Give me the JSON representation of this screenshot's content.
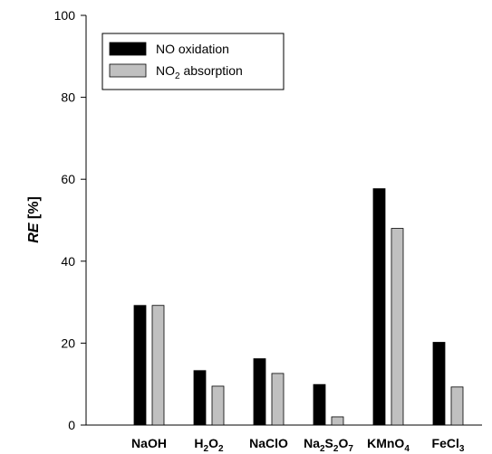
{
  "chart_data": {
    "type": "bar",
    "ylabel_italic": "RE",
    "ylabel_rest": " [%]",
    "ylim": [
      0,
      100
    ],
    "yticks": [
      0,
      20,
      40,
      60,
      80,
      100
    ],
    "categories": [
      {
        "base": "NaOH",
        "parts": [
          {
            "t": "NaOH",
            "sub": false
          }
        ]
      },
      {
        "base": "H2O2",
        "parts": [
          {
            "t": "H",
            "sub": false
          },
          {
            "t": "2",
            "sub": true
          },
          {
            "t": "O",
            "sub": false
          },
          {
            "t": "2",
            "sub": true
          }
        ]
      },
      {
        "base": "NaClO",
        "parts": [
          {
            "t": "NaClO",
            "sub": false
          }
        ]
      },
      {
        "base": "Na2S2O7",
        "parts": [
          {
            "t": "Na",
            "sub": false
          },
          {
            "t": "2",
            "sub": true
          },
          {
            "t": "S",
            "sub": false
          },
          {
            "t": "2",
            "sub": true
          },
          {
            "t": "O",
            "sub": false
          },
          {
            "t": "7",
            "sub": true
          }
        ]
      },
      {
        "base": "KMnO4",
        "parts": [
          {
            "t": "KMnO",
            "sub": false
          },
          {
            "t": "4",
            "sub": true
          }
        ]
      },
      {
        "base": "FeCl3",
        "parts": [
          {
            "t": "FeCl",
            "sub": false
          },
          {
            "t": "3",
            "sub": true
          }
        ]
      }
    ],
    "series": [
      {
        "name": "NO oxidation",
        "name_parts": [
          {
            "t": "NO oxidation",
            "sub": false
          }
        ],
        "color": "#000000",
        "values": [
          29.2,
          13.3,
          16.2,
          9.9,
          57.7,
          20.2
        ]
      },
      {
        "name": "NO2 absorption",
        "name_parts": [
          {
            "t": "NO",
            "sub": false
          },
          {
            "t": "2",
            "sub": true
          },
          {
            "t": " absorption",
            "sub": false
          }
        ],
        "color": "#c0c0c0",
        "values": [
          29.2,
          9.5,
          12.6,
          2.0,
          48.0,
          9.3
        ]
      }
    ],
    "legend_position": "top-left",
    "grid": false
  }
}
